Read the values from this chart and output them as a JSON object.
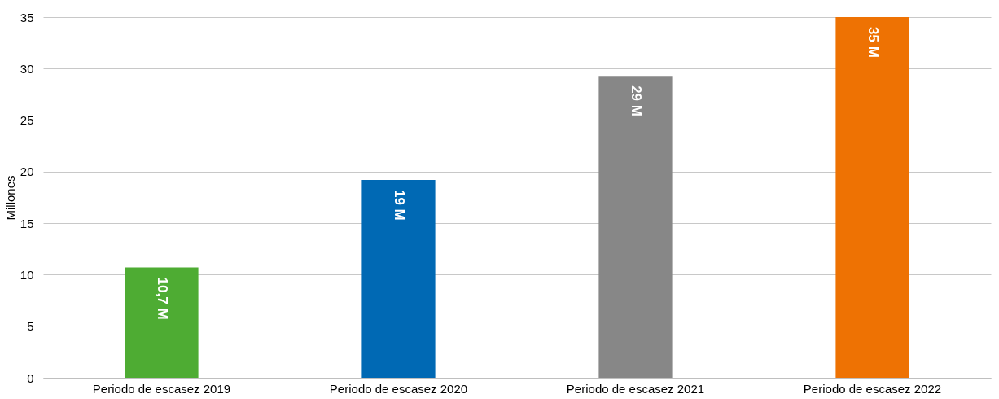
{
  "chart_data": {
    "type": "bar",
    "ylabel": "Millones",
    "categories": [
      "Periodo de escasez 2019",
      "Periodo de escasez 2020",
      "Periodo de escasez 2021",
      "Periodo de escasez 2022"
    ],
    "values": [
      10.7,
      19.2,
      29.3,
      35
    ],
    "colors": [
      "#4eac33",
      "#0069b4",
      "#878787",
      "#ee7203"
    ],
    "value_labels": [
      "10,7 M",
      "19 M",
      "29 M",
      "35 M"
    ],
    "ylim": [
      0,
      35
    ],
    "yticks": [
      0,
      5,
      10,
      15,
      20,
      25,
      30,
      35
    ],
    "grid": "y"
  }
}
